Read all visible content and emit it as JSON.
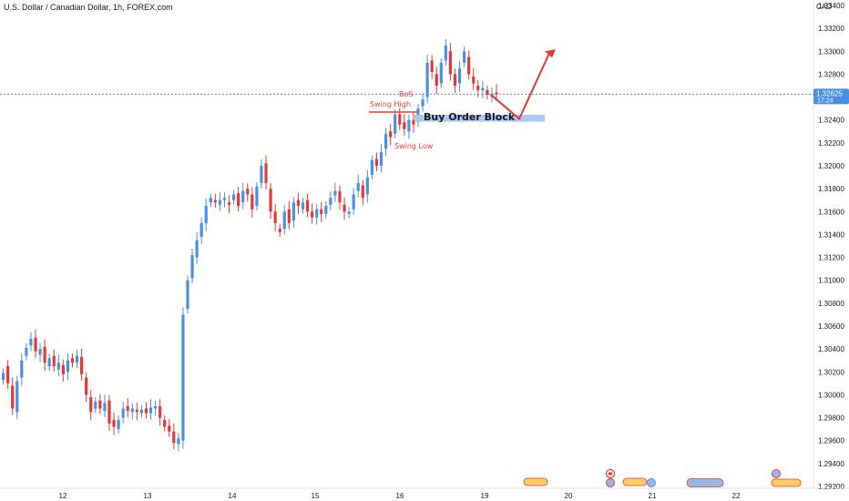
{
  "chart": {
    "title": "U.S. Dollar / Canadian Dollar, 1h, FOREX.com",
    "currency": "CAD",
    "current_price": "1.32625",
    "countdown": "17:24"
  },
  "colors": {
    "up": "#4a90e2",
    "down": "#e53935",
    "annotation": "#e53935",
    "order_block": "#a9c9f1",
    "price_line": "#4a90e2"
  },
  "annotations": {
    "bos": "BoS",
    "swing_high": "Swing High",
    "swing_low": "Swing Low",
    "order_block": "Buy Order Block"
  },
  "chart_data": {
    "type": "candlestick",
    "title": "U.S. Dollar / Canadian Dollar, 1h, FOREX.com",
    "ylabel": "CAD",
    "ylim": [
      1.292,
      1.334
    ],
    "yticks": [
      "1.33400",
      "1.33200",
      "1.33000",
      "1.32800",
      "1.32600",
      "1.32400",
      "1.32200",
      "1.32000",
      "1.31800",
      "1.31600",
      "1.31400",
      "1.31200",
      "1.31000",
      "1.30800",
      "1.30600",
      "1.30400",
      "1.30200",
      "1.30000",
      "1.29800",
      "1.29600",
      "1.29400",
      "1.29200"
    ],
    "xticks": [
      "12",
      "13",
      "14",
      "15",
      "16",
      "19",
      "20",
      "21",
      "22"
    ],
    "grid": false,
    "close_path": [
      [
        1.3013,
        1.3019
      ],
      [
        1.3025,
        1.301
      ],
      [
        1.3008,
        1.2988
      ],
      [
        1.2985,
        1.3012
      ],
      [
        1.3015,
        1.303
      ],
      [
        1.3034,
        1.3041
      ],
      [
        1.3043,
        1.3049
      ],
      [
        1.305,
        1.3038
      ],
      [
        1.3035,
        1.304
      ],
      [
        1.3042,
        1.3028
      ],
      [
        1.3025,
        1.3032
      ],
      [
        1.3034,
        1.3025
      ],
      [
        1.3022,
        1.3028
      ],
      [
        1.3026,
        1.3018
      ],
      [
        1.302,
        1.303
      ],
      [
        1.3032,
        1.3028
      ],
      [
        1.3028,
        1.3034
      ],
      [
        1.3033,
        1.3018
      ],
      [
        1.3015,
        1.3
      ],
      [
        1.2998,
        1.2985
      ],
      [
        1.2988,
        1.2994
      ],
      [
        1.2995,
        1.2988
      ],
      [
        1.2986,
        1.2993
      ],
      [
        1.2995,
        1.2975
      ],
      [
        1.2978,
        1.2972
      ],
      [
        1.297,
        1.2978
      ],
      [
        1.298,
        1.2988
      ],
      [
        1.299,
        1.2986
      ],
      [
        1.2985,
        1.2988
      ],
      [
        1.2987,
        1.2985
      ],
      [
        1.2984,
        1.2987
      ],
      [
        1.2988,
        1.2984
      ],
      [
        1.2984,
        1.2989
      ],
      [
        1.2988,
        1.299
      ],
      [
        1.299,
        1.298
      ],
      [
        1.2978,
        1.2972
      ],
      [
        1.2973,
        1.2968
      ],
      [
        1.2968,
        1.2958
      ],
      [
        1.2957,
        1.2962
      ],
      [
        1.296,
        1.307
      ],
      [
        1.3075,
        1.31
      ],
      [
        1.3102,
        1.3122
      ],
      [
        1.312,
        1.3135
      ],
      [
        1.3138,
        1.315
      ],
      [
        1.315,
        1.3165
      ],
      [
        1.3168,
        1.3172
      ],
      [
        1.317,
        1.3168
      ],
      [
        1.3166,
        1.317
      ],
      [
        1.317,
        1.3172
      ],
      [
        1.3168,
        1.3166
      ],
      [
        1.317,
        1.3175
      ],
      [
        1.3176,
        1.3165
      ],
      [
        1.3168,
        1.3178
      ],
      [
        1.318,
        1.3175
      ],
      [
        1.3175,
        1.3162
      ],
      [
        1.3165,
        1.3182
      ],
      [
        1.3185,
        1.32
      ],
      [
        1.3202,
        1.3185
      ],
      [
        1.318,
        1.316
      ],
      [
        1.316,
        1.315
      ],
      [
        1.3145,
        1.3142
      ],
      [
        1.3145,
        1.316
      ],
      [
        1.3162,
        1.315
      ],
      [
        1.3152,
        1.3168
      ],
      [
        1.317,
        1.3165
      ],
      [
        1.3162,
        1.3168
      ],
      [
        1.317,
        1.316
      ],
      [
        1.316,
        1.3155
      ],
      [
        1.3155,
        1.3162
      ],
      [
        1.3162,
        1.3158
      ],
      [
        1.3158,
        1.3165
      ],
      [
        1.3166,
        1.3172
      ],
      [
        1.3174,
        1.3178
      ],
      [
        1.3178,
        1.3168
      ],
      [
        1.3166,
        1.316
      ],
      [
        1.3158,
        1.316
      ],
      [
        1.3162,
        1.3175
      ],
      [
        1.3178,
        1.3185
      ],
      [
        1.3183,
        1.3172
      ],
      [
        1.3175,
        1.319
      ],
      [
        1.3192,
        1.3205
      ],
      [
        1.3206,
        1.32
      ],
      [
        1.32,
        1.3212
      ],
      [
        1.3215,
        1.3228
      ],
      [
        1.323,
        1.3225
      ],
      [
        1.3228,
        1.3245
      ],
      [
        1.3245,
        1.3236
      ],
      [
        1.3238,
        1.3232
      ],
      [
        1.323,
        1.324
      ],
      [
        1.324,
        1.3236
      ],
      [
        1.3238,
        1.325
      ],
      [
        1.3252,
        1.3258
      ],
      [
        1.326,
        1.329
      ],
      [
        1.3292,
        1.3282
      ],
      [
        1.328,
        1.327
      ],
      [
        1.3272,
        1.329
      ],
      [
        1.3292,
        1.3305
      ],
      [
        1.33,
        1.328
      ],
      [
        1.328,
        1.327
      ],
      [
        1.3272,
        1.3285
      ],
      [
        1.329,
        1.33
      ],
      [
        1.3295,
        1.328
      ],
      [
        1.3278,
        1.3272
      ],
      [
        1.327,
        1.3266
      ],
      [
        1.3266,
        1.3268
      ],
      [
        1.3266,
        1.3262
      ],
      [
        1.326,
        1.3263
      ],
      [
        1.3264,
        1.3262
      ]
    ],
    "order_block_zone": [
      1.32385,
      1.32445
    ],
    "projection": [
      {
        "position": "after last candle",
        "price": 1.3262
      },
      {
        "position": "order block",
        "price": 1.3241
      },
      {
        "position": "target",
        "price": 1.33
      }
    ]
  }
}
